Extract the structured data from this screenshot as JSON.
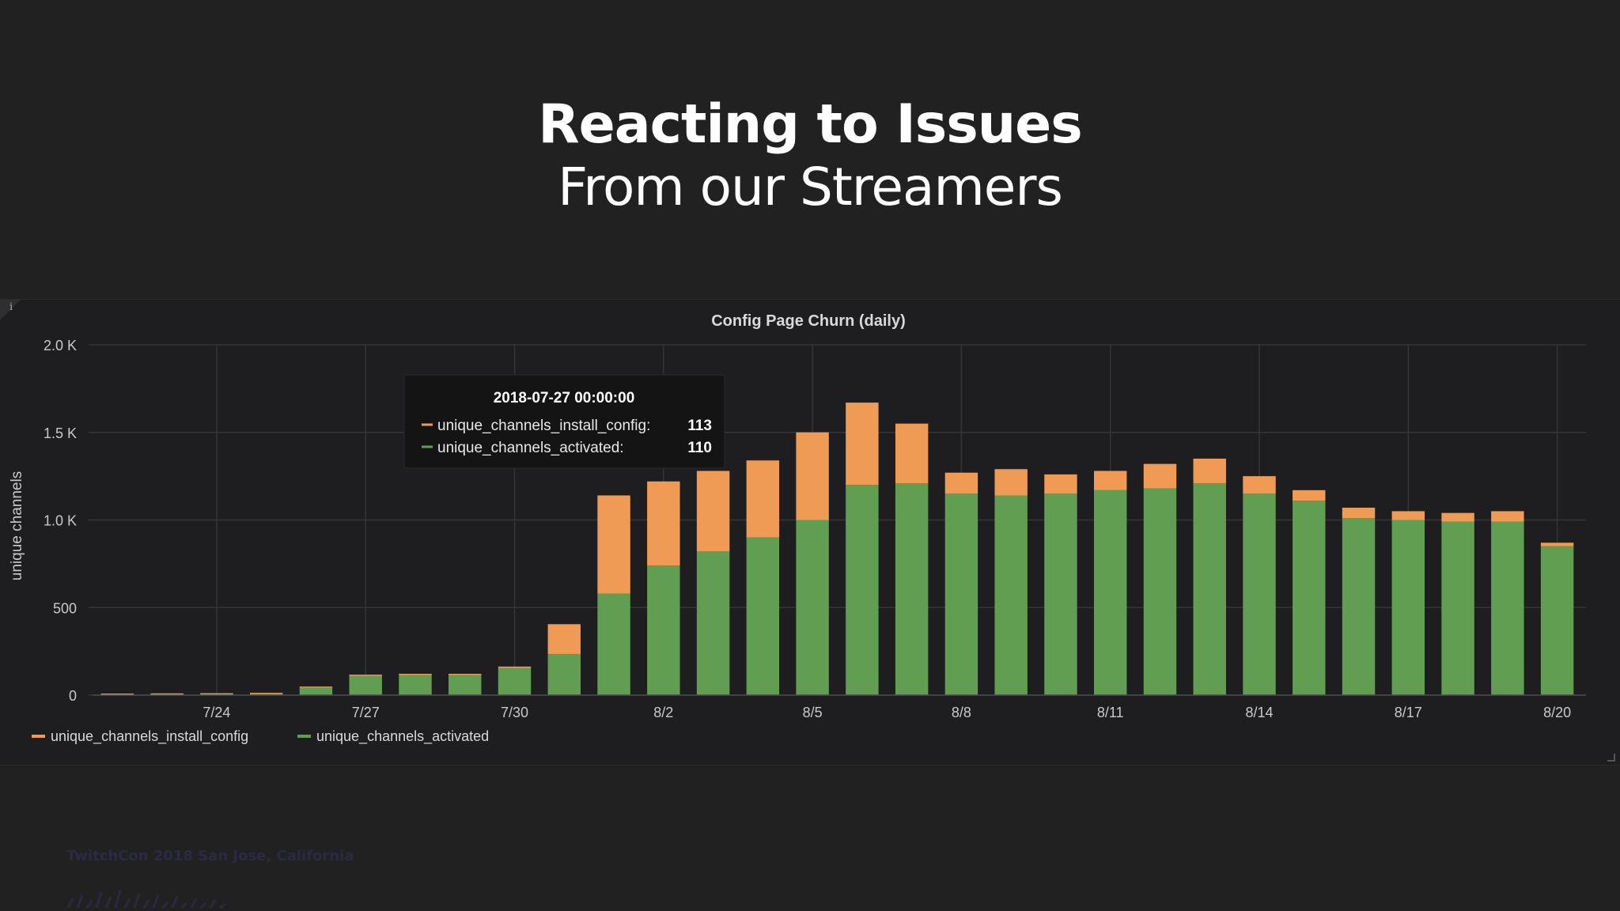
{
  "slide": {
    "title": "Reacting to Issues",
    "subtitle": "From our Streamers",
    "footer": "TwitchCon 2018 San Jose, California"
  },
  "panel": {
    "info_glyph": "i"
  },
  "chart_data": {
    "type": "bar",
    "stacked": true,
    "title": "Config Page Churn (daily)",
    "xlabel": "",
    "ylabel": "unique channels",
    "ylim": [
      0,
      2000
    ],
    "y_ticks": [
      0,
      500,
      1000,
      1500,
      2000
    ],
    "y_tick_labels": [
      "0",
      "500",
      "1.0 K",
      "1.5 K",
      "2.0 K"
    ],
    "categories": [
      "7/22",
      "7/23",
      "7/24",
      "7/25",
      "7/26",
      "7/27",
      "7/28",
      "7/29",
      "7/30",
      "7/31",
      "8/1",
      "8/2",
      "8/3",
      "8/4",
      "8/5",
      "8/6",
      "8/7",
      "8/8",
      "8/9",
      "8/10",
      "8/11",
      "8/12",
      "8/13",
      "8/14",
      "8/15",
      "8/16",
      "8/17",
      "8/18",
      "8/19",
      "8/20"
    ],
    "x_tick_labels": [
      "7/24",
      "7/27",
      "7/30",
      "8/2",
      "8/5",
      "8/8",
      "8/11",
      "8/14",
      "8/17",
      "8/20"
    ],
    "series": [
      {
        "name": "unique_channels_activated",
        "color": "#629e51",
        "values": [
          2,
          3,
          4,
          6,
          42,
          110,
          115,
          115,
          155,
          235,
          580,
          740,
          820,
          900,
          1000,
          1200,
          1210,
          1150,
          1140,
          1150,
          1170,
          1180,
          1210,
          1150,
          1110,
          1010,
          1000,
          990,
          990,
          850
        ]
      },
      {
        "name": "unique_channels_install_config",
        "color": "#f09b55",
        "values": [
          1,
          1,
          1,
          2,
          4,
          3,
          4,
          5,
          8,
          170,
          560,
          480,
          460,
          440,
          500,
          470,
          340,
          120,
          150,
          110,
          110,
          140,
          140,
          100,
          60,
          60,
          50,
          50,
          60,
          20
        ]
      }
    ],
    "legend": [
      {
        "name": "unique_channels_install_config",
        "color": "#f09b55"
      },
      {
        "name": "unique_channels_activated",
        "color": "#629e51"
      }
    ],
    "legend_position": "bottom-left",
    "grid": true,
    "tooltip": {
      "timestamp": "2018-07-27 00:00:00",
      "category_index": 5,
      "rows": [
        {
          "label": "unique_channels_install_config:",
          "value": "113",
          "color": "#f09b55"
        },
        {
          "label": "unique_channels_activated:",
          "value": "110",
          "color": "#629e51"
        }
      ]
    }
  }
}
